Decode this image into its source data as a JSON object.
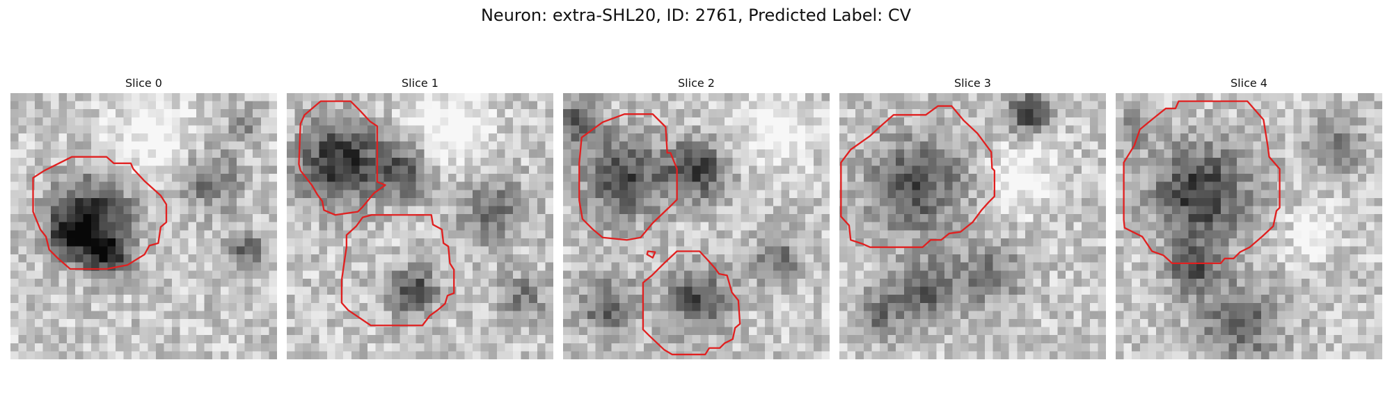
{
  "figure": {
    "title": "Neuron: extra-SHL20, ID: 2761, Predicted Label: CV"
  },
  "panels": [
    {
      "title": "Slice 0",
      "seed": 11,
      "contour_color": "#e02020",
      "contours": [
        [
          [
            4.2,
            9.6
          ],
          [
            7.6,
            7.9
          ],
          [
            11.9,
            7.9
          ],
          [
            12.8,
            8.7
          ],
          [
            14.9,
            8.7
          ],
          [
            15.2,
            9.4
          ],
          [
            16.6,
            10.9
          ],
          [
            18.6,
            12.7
          ],
          [
            19.3,
            13.8
          ],
          [
            19.3,
            16
          ],
          [
            18.6,
            16.6
          ],
          [
            18.3,
            18.6
          ],
          [
            17.2,
            18.9
          ],
          [
            16.6,
            20
          ],
          [
            14.5,
            21.3
          ],
          [
            11.9,
            21.8
          ],
          [
            7.4,
            21.8
          ],
          [
            5.9,
            20.5
          ],
          [
            4.8,
            19.4
          ],
          [
            4.4,
            17.8
          ],
          [
            3.7,
            16.9
          ],
          [
            2.8,
            14.7
          ],
          [
            2.8,
            10.5
          ]
        ]
      ],
      "blobs": [
        [
          10,
          14.5,
          5,
          0.55
        ],
        [
          7,
          17,
          3,
          0.5
        ],
        [
          11.5,
          19.5,
          2.5,
          0.6
        ],
        [
          17.5,
          5.5,
          6,
          -0.25
        ],
        [
          24,
          10,
          4,
          0.35
        ],
        [
          28.5,
          3,
          2,
          0.3
        ],
        [
          28.5,
          19,
          2.5,
          0.35
        ]
      ]
    },
    {
      "title": "Slice 1",
      "seed": 23,
      "contour_color": "#e02020",
      "contours": [
        [
          [
            2.2,
            2.7
          ],
          [
            4.2,
            1
          ],
          [
            7.9,
            1
          ],
          [
            9.1,
            2.2
          ],
          [
            10.3,
            3.5
          ],
          [
            11.2,
            4.1
          ],
          [
            11.2,
            11
          ],
          [
            12.2,
            11.4
          ],
          [
            10.8,
            12.4
          ],
          [
            9.4,
            14.1
          ],
          [
            8.8,
            14.7
          ],
          [
            6,
            15.1
          ],
          [
            4.6,
            14.5
          ],
          [
            4.4,
            13.4
          ],
          [
            3.8,
            12.6
          ],
          [
            3.1,
            11.4
          ],
          [
            1.7,
            9.6
          ],
          [
            1.5,
            8.8
          ],
          [
            1.7,
            3.8
          ]
        ],
        [
          [
            7.4,
            17.6
          ],
          [
            8.6,
            16.5
          ],
          [
            9.4,
            15.4
          ],
          [
            10.5,
            15.1
          ],
          [
            17.9,
            15.1
          ],
          [
            18.1,
            16.3
          ],
          [
            19.2,
            16.9
          ],
          [
            19.4,
            18.6
          ],
          [
            20,
            19
          ],
          [
            20.2,
            21.1
          ],
          [
            20.7,
            21.9
          ],
          [
            20.7,
            24.8
          ],
          [
            19.9,
            25.1
          ],
          [
            19.6,
            26.1
          ],
          [
            18.8,
            26.8
          ],
          [
            17.7,
            27.6
          ],
          [
            16.8,
            28.8
          ],
          [
            10.4,
            28.8
          ],
          [
            7.6,
            26.9
          ],
          [
            6.8,
            26
          ],
          [
            6.8,
            23.2
          ],
          [
            7.2,
            20.4
          ],
          [
            7.4,
            19.1
          ]
        ]
      ],
      "blobs": [
        [
          6,
          8,
          5,
          0.6
        ],
        [
          14,
          9,
          3.5,
          0.45
        ],
        [
          15,
          24,
          3,
          0.5
        ],
        [
          19.5,
          4,
          5,
          -0.3
        ],
        [
          25,
          14,
          4,
          0.35
        ],
        [
          28.5,
          25,
          3,
          0.3
        ]
      ]
    },
    {
      "title": "Slice 2",
      "seed": 37,
      "contour_color": "#e02020",
      "contours": [
        [
          [
            2.3,
            5.5
          ],
          [
            4.9,
            3.6
          ],
          [
            7.6,
            2.6
          ],
          [
            11.1,
            2.6
          ],
          [
            12.7,
            4.2
          ],
          [
            12.9,
            7.4
          ],
          [
            13.3,
            7.4
          ],
          [
            14.1,
            9.4
          ],
          [
            14.1,
            13.2
          ],
          [
            13.2,
            14.1
          ],
          [
            11.1,
            16.1
          ],
          [
            9.6,
            17.9
          ],
          [
            7.9,
            18.2
          ],
          [
            4.9,
            17.9
          ],
          [
            3.7,
            16.9
          ],
          [
            2.4,
            15.6
          ],
          [
            2,
            13.3
          ],
          [
            2,
            8.7
          ]
        ],
        [
          [
            10.5,
            19.6
          ],
          [
            11.4,
            19.7
          ],
          [
            11.1,
            20.4
          ],
          [
            10.4,
            20
          ]
        ],
        [
          [
            12.5,
            21.1
          ],
          [
            14.1,
            19.6
          ],
          [
            16.9,
            19.6
          ],
          [
            18.1,
            20.9
          ],
          [
            18.8,
            21.7
          ],
          [
            19.3,
            22.4
          ],
          [
            20.3,
            22.6
          ],
          [
            20.9,
            24.7
          ],
          [
            21.7,
            25.7
          ],
          [
            21.9,
            28.6
          ],
          [
            21.3,
            29.1
          ],
          [
            21,
            30.5
          ],
          [
            20,
            31
          ],
          [
            19.4,
            31.6
          ],
          [
            18.1,
            31.6
          ],
          [
            17.6,
            32.4
          ],
          [
            13.5,
            32.4
          ],
          [
            12.5,
            31.8
          ],
          [
            10.7,
            30.1
          ],
          [
            9.9,
            29.3
          ],
          [
            9.9,
            23.5
          ],
          [
            11,
            22.6
          ]
        ]
      ],
      "blobs": [
        [
          7,
          10,
          5,
          0.5
        ],
        [
          16,
          9,
          3.5,
          0.55
        ],
        [
          1.5,
          3,
          2.5,
          0.5
        ],
        [
          16,
          25,
          4,
          0.45
        ],
        [
          5,
          26,
          3.5,
          0.4
        ],
        [
          26,
          4,
          4,
          -0.3
        ],
        [
          26,
          20,
          3,
          0.35
        ]
      ]
    },
    {
      "title": "Slice 3",
      "seed": 53,
      "contour_color": "#e02020",
      "contours": [
        [
          [
            0.2,
            8.6
          ],
          [
            1.4,
            7
          ],
          [
            3.8,
            5.3
          ],
          [
            5.1,
            4.1
          ],
          [
            6.7,
            2.7
          ],
          [
            10.7,
            2.7
          ],
          [
            12.2,
            1.6
          ],
          [
            13.9,
            1.6
          ],
          [
            15.4,
            3.4
          ],
          [
            17.1,
            5
          ],
          [
            18.8,
            7.3
          ],
          [
            18.9,
            9.3
          ],
          [
            19.2,
            9.6
          ],
          [
            19.2,
            12.8
          ],
          [
            18.5,
            13.5
          ],
          [
            17.6,
            14.5
          ],
          [
            16.5,
            16
          ],
          [
            15,
            17.2
          ],
          [
            13.6,
            17.4
          ],
          [
            12.6,
            18.2
          ],
          [
            11.3,
            18.2
          ],
          [
            10.3,
            19.1
          ],
          [
            3.8,
            19.1
          ],
          [
            2.9,
            18.7
          ],
          [
            1.4,
            18.2
          ],
          [
            1.2,
            16.4
          ],
          [
            0.2,
            15.3
          ]
        ]
      ],
      "blobs": [
        [
          9,
          11,
          6,
          0.45
        ],
        [
          23,
          2,
          2.5,
          0.55
        ],
        [
          10,
          24,
          4,
          0.4
        ],
        [
          22,
          10,
          4,
          -0.25
        ],
        [
          18,
          22,
          4,
          0.3
        ],
        [
          4,
          27,
          3,
          0.3
        ]
      ]
    },
    {
      "title": "Slice 4",
      "seed": 71,
      "contour_color": "#e02020",
      "contours": [
        [
          [
            3,
            4.5
          ],
          [
            4.7,
            3.1
          ],
          [
            6.2,
            1.9
          ],
          [
            7.4,
            1.9
          ],
          [
            7.8,
            1
          ],
          [
            16.3,
            1
          ],
          [
            18.3,
            3.3
          ],
          [
            18.8,
            6.4
          ],
          [
            19,
            7.9
          ],
          [
            20.3,
            9.4
          ],
          [
            20.3,
            14.2
          ],
          [
            19.9,
            14.6
          ],
          [
            19.5,
            16.5
          ],
          [
            18.1,
            17.8
          ],
          [
            16.6,
            19.1
          ],
          [
            15.4,
            19.7
          ],
          [
            14.6,
            20.5
          ],
          [
            13.5,
            20.5
          ],
          [
            13,
            21.1
          ],
          [
            7,
            21.1
          ],
          [
            5.9,
            20.1
          ],
          [
            4.5,
            19.6
          ],
          [
            3.3,
            17.8
          ],
          [
            1.1,
            16.7
          ],
          [
            1,
            15.7
          ],
          [
            1,
            8.6
          ],
          [
            2.3,
            6.5
          ]
        ]
      ],
      "blobs": [
        [
          10,
          12,
          6,
          0.55
        ],
        [
          9,
          21,
          3,
          0.45
        ],
        [
          15,
          28,
          5,
          0.4
        ],
        [
          2,
          4,
          2,
          0.35
        ],
        [
          27,
          6,
          3,
          0.35
        ],
        [
          24,
          17,
          3,
          -0.25
        ]
      ]
    }
  ]
}
